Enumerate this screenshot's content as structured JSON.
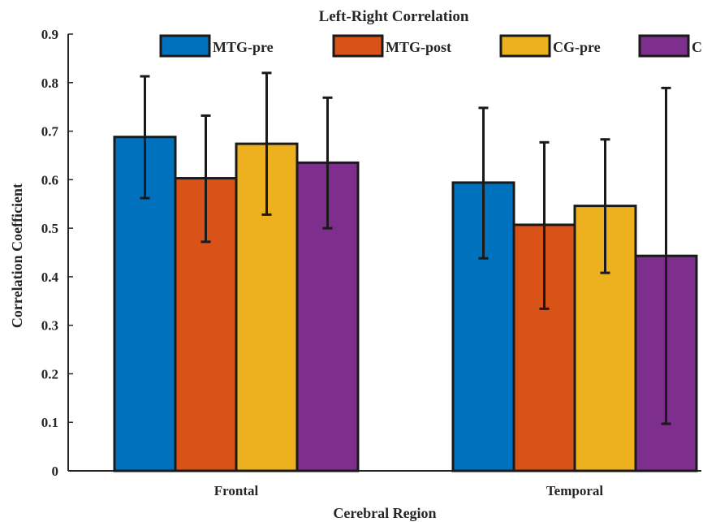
{
  "chart_data": {
    "type": "bar",
    "title": "Left-Right Correlation",
    "xlabel": "Cerebral Region",
    "ylabel": "Correlation Coefficient",
    "categories": [
      "Frontal",
      "Temporal"
    ],
    "ylim": [
      0,
      0.9
    ],
    "yticks": [
      "0",
      "0.1",
      "0.2",
      "0.3",
      "0.4",
      "0.5",
      "0.6",
      "0.7",
      "0.8",
      "0.9"
    ],
    "legend_position": "top",
    "grid": false,
    "series": [
      {
        "name": "MTG-pre",
        "color": "#0072BD",
        "values": [
          0.688,
          0.594
        ],
        "err_low": [
          0.562,
          0.438
        ],
        "err_high": [
          0.813,
          0.748
        ]
      },
      {
        "name": "MTG-post",
        "color": "#D95319",
        "values": [
          0.603,
          0.507
        ],
        "err_low": [
          0.472,
          0.334
        ],
        "err_high": [
          0.732,
          0.677
        ]
      },
      {
        "name": "CG-pre",
        "color": "#EDB120",
        "values": [
          0.674,
          0.546
        ],
        "err_low": [
          0.528,
          0.408
        ],
        "err_high": [
          0.82,
          0.683
        ]
      },
      {
        "name": "CG-post",
        "color": "#7E2F8E",
        "values": [
          0.635,
          0.443
        ],
        "err_low": [
          0.5,
          0.097
        ],
        "err_high": [
          0.769,
          0.789
        ]
      }
    ]
  }
}
